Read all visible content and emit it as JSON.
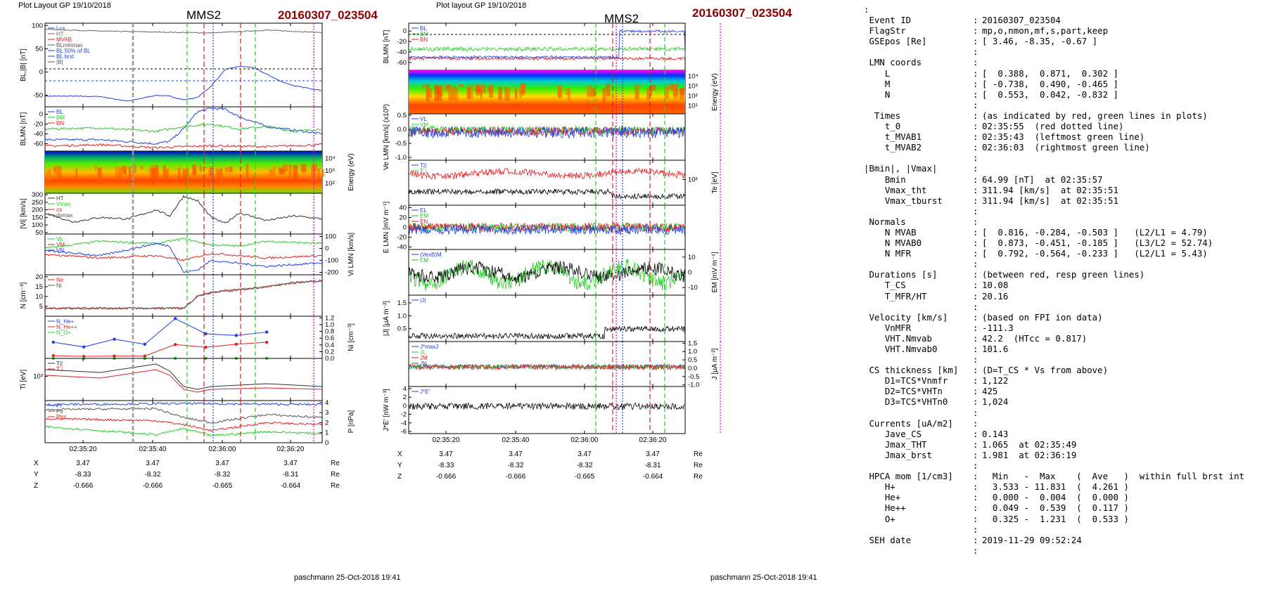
{
  "left_page": {
    "header": "Plot Layout GP 19/10/2018",
    "spacecraft": "MMS2",
    "event": "20160307_023504",
    "footer": "paschmann 25-Oct-2018 19:41",
    "time_ticks": [
      "02:35:20",
      "02:35:40",
      "02:36:00",
      "02:36:20"
    ],
    "ephem": {
      "labels": [
        "X",
        "Y",
        "Z"
      ],
      "values": [
        [
          "3.47",
          "3.47",
          "3.47",
          "3.47"
        ],
        [
          "-8.33",
          "-8.32",
          "-8.32",
          "-8.31"
        ],
        [
          "-0.666",
          "-0.666",
          "-0.665",
          "-0.664"
        ]
      ],
      "unit": "Re"
    }
  },
  "right_page": {
    "header": "Plot layout GP 19/10/2018",
    "spacecraft": "MMS2",
    "event": "20160307_023504",
    "footer": "paschmann 25-Oct-2018 19:41",
    "time_ticks": [
      "02:35:20",
      "02:35:40",
      "02:36:00",
      "02:36:20"
    ],
    "ephem": {
      "labels": [
        "X",
        "Y",
        "Z"
      ],
      "values": [
        [
          "3.47",
          "3.47",
          "3.47",
          "3.47"
        ],
        [
          "-8.33",
          "-8.32",
          "-8.32",
          "-8.31"
        ],
        [
          "-0.666",
          "-0.666",
          "-0.665",
          "-0.664"
        ]
      ],
      "unit": "Re"
    }
  },
  "chart_data": [
    {
      "type": "line",
      "panel": "left-BL",
      "ylabel": "BL,|B| [nT]",
      "ylim": [
        -75,
        105
      ],
      "yticks": [
        "100",
        "50",
        "0",
        "-50"
      ],
      "legend": [
        "Lcs",
        "HT",
        "MVAB",
        "BLminmax",
        "BL 50% of BL",
        "BL brst",
        "|B|"
      ],
      "series": [
        {
          "name": "BL brst",
          "color": "#1f3fe0",
          "x": [
            0,
            10,
            20,
            30,
            40,
            45,
            50,
            55,
            60,
            65,
            70,
            75,
            80,
            85,
            90,
            100
          ],
          "values": [
            -52,
            -52,
            -53,
            -63,
            -50,
            -52,
            -60,
            -55,
            -30,
            5,
            12,
            10,
            -5,
            -20,
            -30,
            -40
          ]
        },
        {
          "name": "|B|",
          "color": "#666666",
          "x": [
            0,
            20,
            40,
            60,
            80,
            100
          ],
          "values": [
            92,
            88,
            86,
            84,
            90,
            85
          ]
        }
      ]
    },
    {
      "type": "line",
      "panel": "left-BLMN",
      "ylabel": "BLMN [nT]",
      "ylim": [
        -75,
        15
      ],
      "yticks": [
        "0",
        "-20",
        "-40",
        "-60"
      ],
      "legend": [
        "BL",
        "BM",
        "BN"
      ],
      "series": [
        {
          "name": "BL",
          "color": "#1f3fe0",
          "x": [
            0,
            20,
            40,
            45,
            50,
            55,
            60,
            65,
            70,
            80,
            100
          ],
          "values": [
            -52,
            -52,
            -60,
            -55,
            -30,
            5,
            12,
            10,
            -5,
            -25,
            -40
          ]
        },
        {
          "name": "BM",
          "color": "#22cc22",
          "x": [
            0,
            20,
            40,
            50,
            60,
            70,
            80,
            90,
            100
          ],
          "values": [
            -30,
            -28,
            -35,
            -25,
            -20,
            -30,
            -25,
            -35,
            -30
          ]
        },
        {
          "name": "BN",
          "color": "#e02020",
          "x": [
            0,
            20,
            40,
            60,
            80,
            100
          ],
          "values": [
            -65,
            -62,
            -68,
            -64,
            -66,
            -62
          ]
        }
      ]
    },
    {
      "type": "heatmap",
      "panel": "left-spectrogram",
      "ylabel": "Energy (eV)",
      "yticks": [
        "10⁴",
        "10³",
        "10²"
      ]
    },
    {
      "type": "line",
      "panel": "left-Vi",
      "ylabel": "|Vi| [km/s]",
      "ylim": [
        40,
        310
      ],
      "yticks": [
        "300",
        "250",
        "200",
        "150",
        "100",
        "50"
      ],
      "legend": [
        "HT",
        "Vmax",
        "cs",
        "dvmax"
      ],
      "series": [
        {
          "name": "|Vi|",
          "color": "#333333",
          "x": [
            0,
            10,
            20,
            30,
            40,
            45,
            50,
            55,
            60,
            65,
            70,
            80,
            90,
            100
          ],
          "values": [
            180,
            120,
            150,
            140,
            200,
            160,
            290,
            260,
            150,
            110,
            180,
            130,
            160,
            140
          ]
        }
      ]
    },
    {
      "type": "line",
      "panel": "left-ViLMN",
      "ylabel": "Vi LMN [km/s]",
      "ylim": [
        -220,
        120
      ],
      "yticks": [
        "100",
        "0",
        "-100",
        "-200"
      ],
      "legend": [
        "VL",
        "VM",
        "VN"
      ],
      "series": [
        {
          "name": "VL",
          "color": "#22cc22",
          "x": [
            0,
            20,
            40,
            50,
            60,
            70,
            80,
            100
          ],
          "values": [
            0,
            60,
            40,
            80,
            30,
            20,
            60,
            40
          ]
        },
        {
          "name": "VM",
          "color": "#e02020",
          "x": [
            0,
            20,
            40,
            50,
            60,
            80,
            100
          ],
          "values": [
            -50,
            -80,
            -60,
            -100,
            -40,
            -80,
            -60
          ]
        },
        {
          "name": "VN",
          "color": "#1f3fe0",
          "x": [
            0,
            20,
            40,
            45,
            50,
            55,
            60,
            80,
            100
          ],
          "values": [
            -20,
            -60,
            40,
            20,
            -200,
            -180,
            -100,
            -150,
            -120
          ]
        }
      ]
    },
    {
      "type": "line",
      "panel": "left-N",
      "ylabel": "N [cm⁻³]",
      "ylim": [
        0,
        21
      ],
      "yticks": [
        "20",
        "15",
        "10",
        "5"
      ],
      "legend": [
        "Ne",
        "Ni"
      ],
      "series": [
        {
          "name": "Ne",
          "color": "#e02020",
          "x": [
            0,
            20,
            40,
            45,
            50,
            55,
            60,
            80,
            90,
            100
          ],
          "values": [
            4,
            4,
            4,
            4,
            4,
            10,
            12,
            15,
            17,
            18
          ]
        },
        {
          "name": "Ni",
          "color": "#555555",
          "x": [
            0,
            20,
            40,
            45,
            50,
            55,
            60,
            80,
            90,
            100
          ],
          "values": [
            4,
            4,
            4,
            4,
            4,
            10,
            12,
            15,
            17,
            18
          ]
        }
      ]
    },
    {
      "type": "line",
      "panel": "left-Ni-hpca",
      "ylabel": "Ni [cm⁻³]",
      "ylim": [
        0,
        1.25
      ],
      "yticks": [
        "1.2",
        "1.0",
        "0.8",
        "0.6",
        "0.4",
        "0.2",
        "0.0"
      ],
      "legend": [
        "N_He+",
        "N_He++",
        "N_O+"
      ],
      "series": [
        {
          "name": "N_O+",
          "color": "#1f3fe0",
          "x": [
            3,
            14,
            25,
            36,
            47,
            58,
            69,
            80
          ],
          "values": [
            0.48,
            0.34,
            0.57,
            0.42,
            1.18,
            0.73,
            0.68,
            0.78
          ]
        },
        {
          "name": "N_He++",
          "color": "#e02020",
          "x": [
            3,
            14,
            25,
            36,
            47,
            58,
            69,
            80
          ],
          "values": [
            0.08,
            0.06,
            0.07,
            0.07,
            0.41,
            0.33,
            0.42,
            0.48
          ]
        },
        {
          "name": "N_He+",
          "color": "#22cc22",
          "x": [
            3,
            14,
            25,
            36,
            47,
            58,
            69,
            80
          ],
          "values": [
            0.0,
            0.0,
            0.0,
            0.0,
            0.0,
            0.0,
            0.0,
            0.0
          ]
        }
      ]
    },
    {
      "type": "line",
      "panel": "left-Ti",
      "ylabel": "Ti [eV]",
      "yticks": [
        "10³"
      ],
      "legend": [
        "T||",
        "T⊥"
      ],
      "series": [
        {
          "name": "T||",
          "color": "#333333",
          "x": [
            0,
            20,
            40,
            45,
            50,
            55,
            60,
            80,
            100
          ],
          "values": [
            1100,
            1000,
            1300,
            1050,
            500,
            400,
            500,
            600,
            500
          ]
        },
        {
          "name": "T⊥",
          "color": "#e02020",
          "x": [
            0,
            20,
            40,
            45,
            50,
            55,
            60,
            80,
            100
          ],
          "values": [
            900,
            800,
            1100,
            900,
            400,
            300,
            400,
            450,
            400
          ]
        }
      ]
    },
    {
      "type": "line",
      "panel": "left-P",
      "ylabel": "P [nPa]",
      "ylim": [
        0,
        4.2
      ],
      "yticks": [
        "4",
        "3",
        "2",
        "1",
        "0"
      ],
      "legend": [
        "Pi",
        "Pe",
        "Ptot"
      ],
      "series": [
        {
          "name": "Pt",
          "color": "#1f3fe0",
          "x": [
            0,
            50,
            100
          ],
          "values": [
            3.8,
            3.9,
            3.8
          ]
        },
        {
          "name": "Pi",
          "color": "#555555",
          "x": [
            0,
            40,
            50,
            60,
            80,
            100
          ],
          "values": [
            3.3,
            3.4,
            2.5,
            2.0,
            2.8,
            2.5
          ]
        },
        {
          "name": "Pe",
          "color": "#e02020",
          "x": [
            0,
            40,
            50,
            60,
            80,
            100
          ],
          "values": [
            2.4,
            2.2,
            1.8,
            1.2,
            2.0,
            1.8
          ]
        },
        {
          "name": "PB",
          "color": "#22cc22",
          "x": [
            0,
            40,
            50,
            60,
            80,
            100
          ],
          "values": [
            1.6,
            0.8,
            1.4,
            0.7,
            1.1,
            0.9
          ]
        }
      ]
    },
    {
      "type": "line",
      "panel": "right-BLMN",
      "ylabel": "BLMN [nT]",
      "ylim": [
        -75,
        15
      ],
      "yticks": [
        "0",
        "-20",
        "-40",
        "-60"
      ],
      "legend": [
        "BL",
        "BM",
        "BN"
      ]
    },
    {
      "type": "heatmap",
      "panel": "right-spectrogram",
      "ylabel": "Energy (eV)",
      "yticks": [
        "10⁴",
        "10³",
        "10²",
        "10¹"
      ]
    },
    {
      "type": "line",
      "panel": "right-Ve",
      "ylabel": "Ve LMN [km/s] (x10³)",
      "ylim": [
        -1.1,
        0.55
      ],
      "yticks": [
        "0.5",
        "0.0",
        "-0.5",
        "-1.0"
      ],
      "legend": [
        "VL",
        "VM",
        "VN"
      ]
    },
    {
      "type": "line",
      "panel": "right-Te",
      "ylabel": "Te [eV]",
      "yticks": [
        "10²"
      ],
      "legend": [
        "T||",
        "T⊥"
      ]
    },
    {
      "type": "line",
      "panel": "right-E",
      "ylabel": "E LMN [mV m⁻¹]",
      "ylim": [
        -45,
        45
      ],
      "yticks": [
        "40",
        "20",
        "0",
        "-20",
        "-40"
      ],
      "legend": [
        "EL",
        "EM",
        "EN"
      ]
    },
    {
      "type": "line",
      "panel": "right-VexB",
      "ylabel": "EM [mV m⁻¹]",
      "ylim": [
        -15,
        15
      ],
      "yticks": [
        "10",
        "0",
        "-10"
      ],
      "legend": [
        "(VexB)M",
        "EM"
      ]
    },
    {
      "type": "line",
      "panel": "right-J",
      "ylabel": "|J| [μA m⁻²]",
      "ylim": [
        0,
        1.8
      ],
      "yticks": [
        "1.5",
        "1.0",
        "0.5"
      ],
      "legend": [
        "|J|"
      ]
    },
    {
      "type": "line",
      "panel": "right-JLMN",
      "ylabel": "J [μA m⁻²]",
      "ylim": [
        -1.1,
        1.6
      ],
      "yticks": [
        "1.5",
        "1.0",
        "0.5",
        "0.0",
        "-0.5",
        "-1.0"
      ],
      "legend": [
        "J*maxJ",
        "JL",
        "JM",
        "JN"
      ]
    },
    {
      "type": "line",
      "panel": "right-JE",
      "ylabel": "J*E' [nW m⁻³]",
      "ylim": [
        -6.5,
        4.5
      ],
      "yticks": [
        "4",
        "2",
        "0",
        "-2",
        "-4",
        "-6"
      ],
      "legend": [
        "J*E'"
      ]
    }
  ],
  "info_panel": {
    "rows": [
      {
        "k": ":",
        "v": ""
      },
      {
        "k": " Event ID",
        "v": "20160307_023504"
      },
      {
        "k": " FlagStr",
        "v": "mp,o,nmon,mf,s,part,keep"
      },
      {
        "k": " GSEpos [Re]",
        "v": "[ 3.46, -8.35, -0.67 ]"
      },
      {
        "k": "",
        "v": ""
      },
      {
        "k": " LMN coords",
        "v": ""
      },
      {
        "k": "    L",
        "v": "[  0.388,  0.871,  0.302 ]"
      },
      {
        "k": "    M",
        "v": "[ -0.738,  0.490, -0.465 ]"
      },
      {
        "k": "    N",
        "v": "[  0.553,  0.042, -0.832 ]"
      },
      {
        "k": "",
        "v": ""
      },
      {
        "k": "  Times",
        "v": "(as indicated by red, green lines in plots)"
      },
      {
        "k": "    t_0",
        "v": "02:35:55  (red dotted line)"
      },
      {
        "k": "    t_MVAB1",
        "v": "02:35:43  (leftmost green line)"
      },
      {
        "k": "    t_MVAB2",
        "v": "02:36:03  (rightmost green line)"
      },
      {
        "k": "",
        "v": ""
      },
      {
        "k": "|Bmin|, |Vmax|",
        "v": ""
      },
      {
        "k": "    Bmin",
        "v": "64.99 [nT]  at 02:35:57"
      },
      {
        "k": "    Vmax_tht",
        "v": "311.94 [km/s]  at 02:35:51"
      },
      {
        "k": "    Vmax_tburst",
        "v": "311.94 [km/s]  at 02:35:51"
      },
      {
        "k": "",
        "v": ""
      },
      {
        "k": " Normals",
        "v": ""
      },
      {
        "k": "    N MVAB",
        "v": "[  0.816, -0.284, -0.503 ]   (L2/L1 = 4.79)"
      },
      {
        "k": "    N MVAB0",
        "v": "[  0.873, -0.451, -0.185 ]   (L3/L2 = 52.74)"
      },
      {
        "k": "    N MFR",
        "v": "[  0.792, -0.564, -0.233 ]   (L2/L1 = 5.43)"
      },
      {
        "k": "",
        "v": ""
      },
      {
        "k": " Durations [s]",
        "v": "(between red, resp green lines)"
      },
      {
        "k": "    T_CS",
        "v": "10.08"
      },
      {
        "k": "    T_MFR/HT",
        "v": "20.16"
      },
      {
        "k": "",
        "v": ""
      },
      {
        "k": " Velocity [km/s]",
        "v": "(based on FPI ion data)"
      },
      {
        "k": "    VnMFR",
        "v": "-111.3"
      },
      {
        "k": "    VHT.Nmvab",
        "v": "42.2  (HTcc = 0.817)"
      },
      {
        "k": "    VHT.Nmvab0",
        "v": "101.6"
      },
      {
        "k": "",
        "v": ""
      },
      {
        "k": " CS thickness [km]",
        "v": "(D=T_CS * Vs from above)"
      },
      {
        "k": "    D1=TCS*Vnmfr",
        "v": "1,122"
      },
      {
        "k": "    D2=TCS*VHTn",
        "v": "425"
      },
      {
        "k": "    D3=TCS*VHTn0",
        "v": "1,024"
      },
      {
        "k": "",
        "v": ""
      },
      {
        "k": " Currents [uA/m2]",
        "v": ""
      },
      {
        "k": "    Jave_CS",
        "v": "0.143"
      },
      {
        "k": "    Jmax_THT",
        "v": "1.065  at 02:35:49"
      },
      {
        "k": "    Jmax_brst",
        "v": "1.981  at 02:36:19"
      },
      {
        "k": "",
        "v": ""
      },
      {
        "k": " HPCA mom [1/cm3]",
        "v": "  Min   -  Max    (  Ave   )  within full brst int"
      },
      {
        "k": "    H+",
        "v": "  3.533 - 11.831  (  4.261 )"
      },
      {
        "k": "    He+",
        "v": "  0.000 -  0.004  (  0.000 )"
      },
      {
        "k": "    He++",
        "v": "  0.049 -  0.539  (  0.117 )"
      },
      {
        "k": "    O+",
        "v": "  0.325 -  1.231  (  0.533 )"
      },
      {
        "k": "",
        "v": ""
      },
      {
        "k": " SEH date",
        "v": "2019-11-29 09:52:24"
      },
      {
        "k": "",
        "v": ""
      }
    ]
  },
  "colors": {
    "title_event": "#8b0000",
    "blue": "#1f3fe0",
    "green": "#22cc22",
    "red": "#e02020",
    "magenta": "#dd00dd"
  }
}
